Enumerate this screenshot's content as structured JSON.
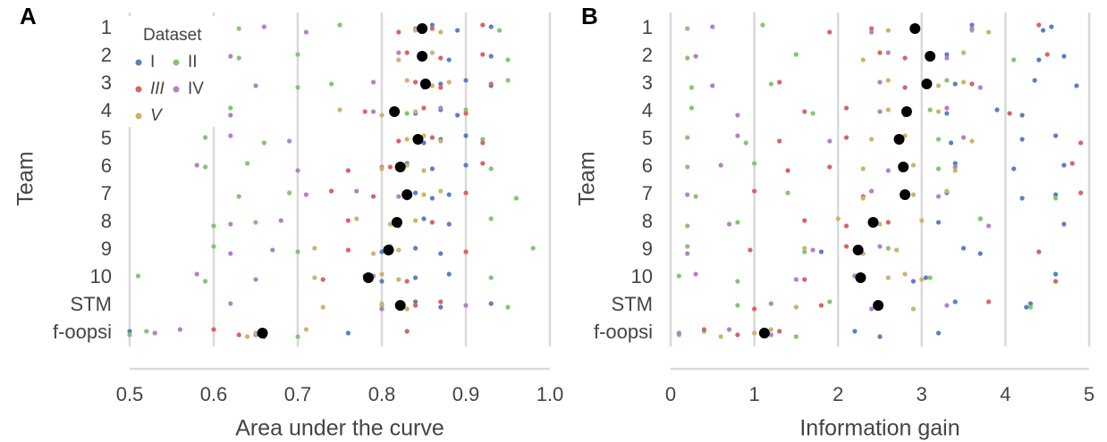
{
  "chart_data": [
    {
      "type": "scatter",
      "panel": "A",
      "xlabel": "Area under the curve",
      "ylabel": "Team",
      "categories": [
        "1",
        "2",
        "3",
        "4",
        "5",
        "6",
        "7",
        "8",
        "9",
        "10",
        "STM",
        "f-oopsi"
      ],
      "xlim": [
        0.5,
        1
      ],
      "xticks": [
        0.5,
        0.6,
        0.7,
        0.8,
        0.9,
        {
          "value": 1,
          "label": "1.0"
        }
      ],
      "grid": true,
      "legend": true,
      "legend_title": "Dataset",
      "series": [
        {
          "name": "I",
          "color": "#5b7ec4",
          "style": "normal",
          "values": [
            [
              0.86,
              0.89,
              0.93
            ],
            [
              0.85,
              0.88,
              0.93
            ],
            [
              0.87,
              0.9,
              0.93
            ],
            [
              0.84,
              0.87,
              0.89
            ],
            [
              0.85,
              0.87,
              0.9
            ],
            [
              0.83,
              0.86,
              0.9
            ],
            [
              0.84,
              0.86,
              0.88
            ],
            [
              0.82,
              0.85,
              0.88
            ],
            [
              0.8,
              0.84,
              0.87
            ],
            [
              0.8,
              0.84,
              0.88
            ],
            [
              0.84,
              0.87,
              0.93
            ],
            [
              0.5,
              0.66,
              0.76
            ]
          ]
        },
        {
          "name": "II",
          "color": "#84c474",
          "style": "normal",
          "values": [
            [
              0.63,
              0.75,
              0.94
            ],
            [
              0.63,
              0.7,
              0.95
            ],
            [
              0.7,
              0.74,
              0.95
            ],
            [
              0.62,
              0.83,
              0.9
            ],
            [
              0.59,
              0.66,
              0.92
            ],
            [
              0.59,
              0.64,
              0.93
            ],
            [
              0.63,
              0.69,
              0.96
            ],
            [
              0.6,
              0.65,
              0.93
            ],
            [
              0.6,
              0.7,
              0.98
            ],
            [
              0.51,
              0.59,
              0.93
            ],
            [
              0.8,
              0.87,
              0.95
            ],
            [
              0.5,
              0.52,
              0.7
            ]
          ]
        },
        {
          "name": "III",
          "color": "#da6361",
          "style": "italic",
          "values": [
            [
              0.82,
              0.86,
              0.92
            ],
            [
              0.83,
              0.87,
              0.92
            ],
            [
              0.84,
              0.87,
              0.93
            ],
            [
              0.78,
              0.85,
              0.9
            ],
            [
              0.82,
              0.86,
              0.92
            ],
            [
              0.76,
              0.81,
              0.92
            ],
            [
              0.74,
              0.79,
              0.9
            ],
            [
              0.76,
              0.82,
              0.86
            ],
            [
              0.76,
              0.81,
              0.9
            ],
            [
              0.73,
              0.78,
              0.83
            ],
            [
              0.8,
              0.84,
              0.87
            ],
            [
              0.6,
              0.63,
              0.83
            ]
          ]
        },
        {
          "name": "IV",
          "color": "#b380c8",
          "style": "normal",
          "values": [
            [
              0.66,
              0.71,
              0.84
            ],
            [
              0.62,
              0.82,
              0.85
            ],
            [
              0.65,
              0.79,
              0.85
            ],
            [
              0.62,
              0.79,
              0.87
            ],
            [
              0.62,
              0.69,
              0.84
            ],
            [
              0.58,
              0.7,
              0.8
            ],
            [
              0.71,
              0.77,
              0.82
            ],
            [
              0.62,
              0.68,
              0.82
            ],
            [
              0.62,
              0.67,
              0.81
            ],
            [
              0.58,
              0.65,
              0.79
            ],
            [
              0.62,
              0.8,
              0.9
            ],
            [
              0.53,
              0.56,
              0.65
            ]
          ]
        },
        {
          "name": "V",
          "color": "#cfb26b",
          "style": "italic",
          "values": [
            [
              0.84,
              0.85,
              0.87
            ],
            [
              0.82,
              0.85,
              0.86
            ],
            [
              0.83,
              0.86,
              0.88
            ],
            [
              0.75,
              0.8,
              0.84
            ],
            [
              0.83,
              0.85,
              0.87
            ],
            [
              0.8,
              0.83,
              0.85
            ],
            [
              0.83,
              0.85,
              0.87
            ],
            [
              0.77,
              0.81,
              0.84
            ],
            [
              0.72,
              0.79,
              0.82
            ],
            [
              0.72,
              0.8,
              0.82
            ],
            [
              0.73,
              0.8,
              0.83
            ],
            [
              0.64,
              0.65,
              0.71
            ]
          ]
        }
      ],
      "means": {
        "color": "#000000",
        "values": [
          0.848,
          0.848,
          0.852,
          0.815,
          0.843,
          0.822,
          0.83,
          0.818,
          0.808,
          0.784,
          0.822,
          0.658
        ]
      }
    },
    {
      "type": "scatter",
      "panel": "B",
      "xlabel": "Information gain",
      "ylabel": "Team",
      "categories": [
        "1",
        "2",
        "3",
        "4",
        "5",
        "6",
        "7",
        "8",
        "9",
        "10",
        "STM",
        "f-oopsi"
      ],
      "xlim": [
        0,
        5
      ],
      "xticks": [
        0,
        1,
        2,
        3,
        4,
        5
      ],
      "grid": true,
      "legend": false,
      "series": [
        {
          "name": "I",
          "color": "#5b7ec4",
          "values": [
            [
              3.6,
              4.45,
              4.55
            ],
            [
              3.3,
              4.4,
              4.7
            ],
            [
              3.4,
              4.35,
              4.85
            ],
            [
              3.3,
              3.9,
              4.2
            ],
            [
              3.35,
              4.2,
              4.6
            ],
            [
              3.4,
              4.1,
              4.7
            ],
            [
              3.3,
              4.2,
              4.6
            ],
            [
              3.2,
              3.7,
              4.7
            ],
            [
              1.8,
              3.5,
              3.7
            ],
            [
              2.9,
              3.05,
              4.6
            ],
            [
              3.4,
              4.25,
              4.3
            ],
            [
              2.2,
              2.5,
              3.2
            ]
          ]
        },
        {
          "name": "II",
          "color": "#84c474",
          "values": [
            [
              0.2,
              1.1,
              3.6
            ],
            [
              0.2,
              1.5,
              4.1
            ],
            [
              0.25,
              1.2,
              3.3
            ],
            [
              0.25,
              1.7,
              3.1
            ],
            [
              0.2,
              0.9,
              3.2
            ],
            [
              0.2,
              1,
              3.2
            ],
            [
              0.3,
              1.4,
              4.6
            ],
            [
              0.2,
              0.8,
              3.7
            ],
            [
              0.2,
              1.6,
              2.6
            ],
            [
              0.1,
              0.8,
              3.1
            ],
            [
              0.8,
              1.9,
              4.3
            ],
            [
              0.1,
              0.4,
              1.5
            ]
          ]
        },
        {
          "name": "III",
          "color": "#da6361",
          "values": [
            [
              1.9,
              2.4,
              4.4
            ],
            [
              2.5,
              2.8,
              4.5
            ],
            [
              1.3,
              2.8,
              3.6
            ],
            [
              1.6,
              2.1,
              4.05
            ],
            [
              1.3,
              2.1,
              4.9
            ],
            [
              1.4,
              1.9,
              4.8
            ],
            [
              1,
              2.3,
              4.9
            ],
            [
              1.6,
              2.1,
              2.6
            ],
            [
              0.95,
              2.1,
              4.4
            ],
            [
              1.6,
              2.2,
              4.6
            ],
            [
              1,
              1.8,
              3.8
            ],
            [
              0.4,
              0.8,
              1.3
            ]
          ]
        },
        {
          "name": "IV",
          "color": "#b380c8",
          "values": [
            [
              0.5,
              2.4,
              3.6
            ],
            [
              0.3,
              2.6,
              3.3
            ],
            [
              0.5,
              2.5,
              3.7
            ],
            [
              0.8,
              2.5,
              3.3
            ],
            [
              0.8,
              1.9,
              3.5
            ],
            [
              0.6,
              2.6,
              3.4
            ],
            [
              0.2,
              2.4,
              3.2
            ],
            [
              0.7,
              2.4,
              3.8
            ],
            [
              0.2,
              1.7,
              2.5
            ],
            [
              0.3,
              1.5,
              2.2
            ],
            [
              1.2,
              2.4,
              3.3
            ],
            [
              0.1,
              0.7,
              1.2
            ]
          ]
        },
        {
          "name": "V",
          "color": "#cfb26b",
          "values": [
            [
              2.6,
              2.9,
              3.8
            ],
            [
              2.3,
              3.1,
              3.5
            ],
            [
              2.6,
              3.2,
              3.5
            ],
            [
              2.6,
              2.8,
              3.2
            ],
            [
              2.4,
              2.8,
              3.6
            ],
            [
              2.3,
              2.9,
              3.4
            ],
            [
              2.3,
              2.9,
              3.3
            ],
            [
              2,
              2.5,
              3
            ],
            [
              1.6,
              2.3,
              2.7
            ],
            [
              2.6,
              2.8,
              3
            ],
            [
              1.5,
              2.5,
              2.9
            ],
            [
              0.6,
              1,
              1.2
            ]
          ]
        }
      ],
      "means": {
        "color": "#000000",
        "values": [
          2.92,
          3.1,
          3.06,
          2.82,
          2.73,
          2.78,
          2.8,
          2.42,
          2.24,
          2.27,
          2.48,
          1.12
        ]
      }
    }
  ]
}
